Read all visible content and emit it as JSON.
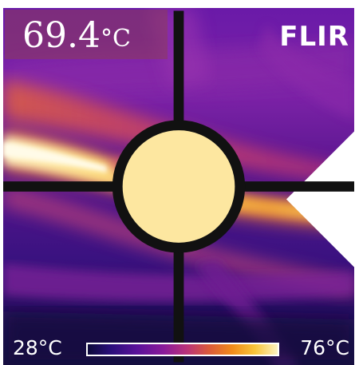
{
  "measurement": {
    "spot_value": "69.4",
    "spot_unit": "°C"
  },
  "brand": {
    "name": "FLIR",
    "icon": "flir-diamond-logo-icon"
  },
  "scale": {
    "min_label": "28°C",
    "max_label": "76°C",
    "min_color": "#0d0a3a",
    "max_color": "#fdf2c0"
  },
  "crosshair": {
    "icon": "spot-meter-crosshair-icon"
  },
  "colors": {
    "background_cold": "#1c0f5a",
    "mid_purple": "#7a1fa0",
    "hot_yellow": "#fde7a0"
  }
}
